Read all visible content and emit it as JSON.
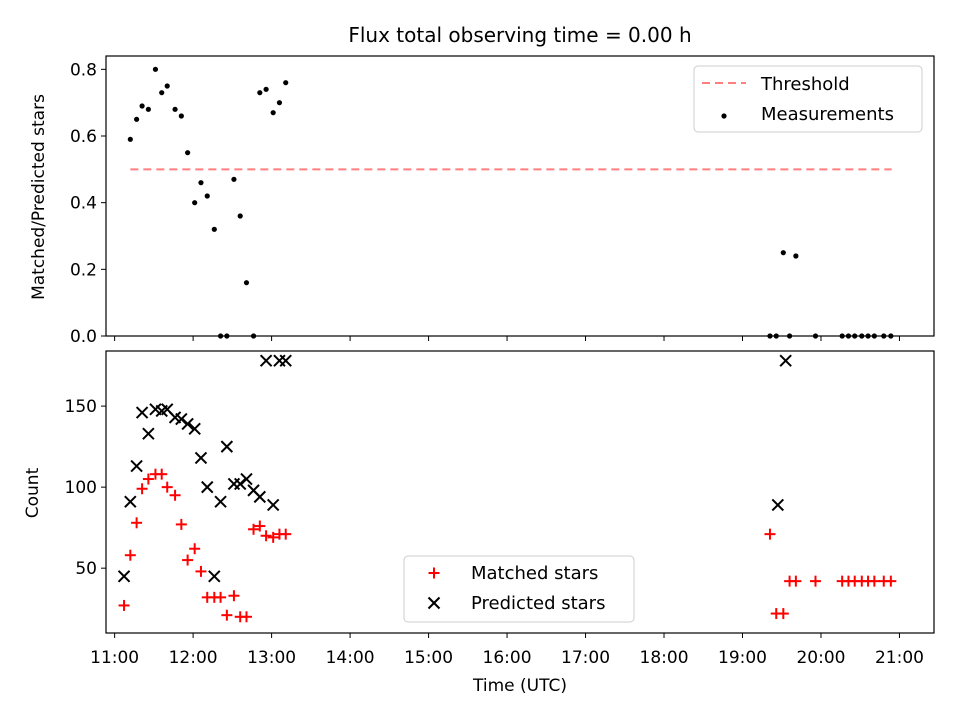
{
  "title": "Flux total observing time = 0.00 h",
  "chart_data": [
    {
      "type": "scatter",
      "ylabel": "Matched/Predicted stars",
      "xlim": [
        10.89,
        21.44
      ],
      "ylim": [
        0,
        0.84
      ],
      "y_ticks": [
        0.0,
        0.2,
        0.4,
        0.6,
        0.8
      ],
      "y_tick_labels": [
        "0.0",
        "0.2",
        "0.4",
        "0.6",
        "0.8"
      ],
      "legend": {
        "position": "top-right",
        "threshold_label": "Threshold",
        "measurements_label": "Measurements"
      },
      "threshold": {
        "value": 0.5,
        "x_start": 11.2,
        "x_end": 20.9,
        "color": "#ff7f7f"
      },
      "measurements": {
        "color": "#000000",
        "x": [
          11.2,
          11.28,
          11.35,
          11.43,
          11.52,
          11.6,
          11.67,
          11.77,
          11.85,
          11.93,
          12.02,
          12.1,
          12.18,
          12.27,
          12.35,
          12.43,
          12.52,
          12.6,
          12.68,
          12.77,
          12.85,
          12.93,
          13.02,
          13.1,
          13.18,
          19.35,
          19.43,
          19.52,
          19.6,
          19.68,
          19.93,
          20.27,
          20.35,
          20.43,
          20.52,
          20.6,
          20.68,
          20.8,
          20.89
        ],
        "y": [
          0.59,
          0.65,
          0.69,
          0.68,
          0.8,
          0.73,
          0.75,
          0.68,
          0.66,
          0.55,
          0.4,
          0.46,
          0.42,
          0.32,
          0.0,
          0.0,
          0.47,
          0.36,
          0.16,
          0.0,
          0.73,
          0.74,
          0.67,
          0.7,
          0.76,
          0.0,
          0.0,
          0.25,
          0.0,
          0.24,
          0.0,
          0.0,
          0.0,
          0.0,
          0.0,
          0.0,
          0.0,
          0.0,
          0.0
        ]
      }
    },
    {
      "type": "scatter",
      "xlabel": "Time (UTC)",
      "ylabel": "Count",
      "xlim": [
        10.89,
        21.44
      ],
      "ylim": [
        10,
        184
      ],
      "x_ticks": [
        11,
        12,
        13,
        14,
        15,
        16,
        17,
        18,
        19,
        20,
        21
      ],
      "x_tick_labels": [
        "11:00",
        "12:00",
        "13:00",
        "14:00",
        "15:00",
        "16:00",
        "17:00",
        "18:00",
        "19:00",
        "20:00",
        "21:00"
      ],
      "y_ticks": [
        50,
        100,
        150
      ],
      "y_tick_labels": [
        "50",
        "100",
        "150"
      ],
      "legend": {
        "position": "lower-center"
      },
      "series": [
        {
          "name": "Matched stars",
          "marker": "plus",
          "color": "#ff0000",
          "x": [
            11.12,
            11.2,
            11.28,
            11.35,
            11.43,
            11.52,
            11.6,
            11.67,
            11.77,
            11.85,
            11.93,
            12.02,
            12.1,
            12.18,
            12.27,
            12.35,
            12.43,
            12.52,
            12.6,
            12.68,
            12.77,
            12.85,
            12.93,
            13.02,
            13.1,
            13.18,
            19.35,
            19.43,
            19.52,
            19.6,
            19.68,
            19.93,
            20.27,
            20.35,
            20.43,
            20.52,
            20.6,
            20.68,
            20.8,
            20.89
          ],
          "y": [
            27,
            58,
            78,
            99,
            105,
            108,
            108,
            100,
            95,
            77,
            55,
            62,
            48,
            32,
            32,
            32,
            21,
            33,
            20,
            20,
            74,
            76,
            70,
            69,
            71,
            71,
            71,
            22,
            22,
            42,
            42,
            42,
            42,
            42,
            42,
            42,
            42,
            42,
            42,
            42
          ]
        },
        {
          "name": "Predicted stars",
          "marker": "x",
          "color": "#000000",
          "x": [
            11.12,
            11.2,
            11.28,
            11.35,
            11.43,
            11.52,
            11.6,
            11.67,
            11.77,
            11.85,
            11.93,
            12.02,
            12.1,
            12.18,
            12.27,
            12.35,
            12.43,
            12.52,
            12.6,
            12.68,
            12.77,
            12.85,
            12.93,
            13.02,
            13.1,
            13.18,
            19.45,
            19.55
          ],
          "y": [
            45,
            91,
            113,
            146,
            133,
            148,
            147,
            148,
            143,
            142,
            139,
            136,
            118,
            100,
            45,
            91,
            125,
            102,
            102,
            105,
            98,
            94,
            178,
            89,
            178,
            178,
            89,
            178
          ]
        }
      ]
    }
  ]
}
